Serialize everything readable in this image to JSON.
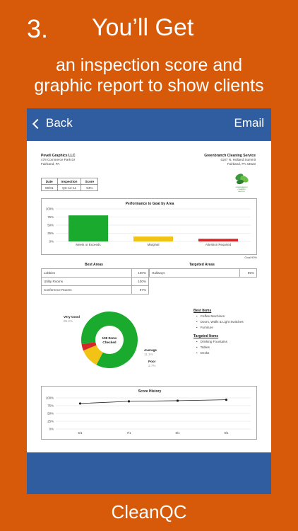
{
  "hero": {
    "step": "3.",
    "title": "You’ll Get",
    "subtitle_line1": "an inspection score and",
    "subtitle_line2": "graphic report to show clients"
  },
  "footer": {
    "brand": "CleanQC"
  },
  "navbar": {
    "back_label": "Back",
    "email_label": "Email"
  },
  "report": {
    "client": {
      "name": "Peveli Graphics LLC",
      "address1": "478 Commerce Park Dr",
      "address2": "Fairband, PA"
    },
    "company": {
      "name": "Greenbranch Cleaning Service",
      "address1": "4167 N. Holland Summit",
      "address2": "Fairband, PA 43623",
      "logo_text": "GREENBRANCH CLEANING SERVICE"
    },
    "info": {
      "headers": [
        "Date",
        "Inspection",
        "Score"
      ],
      "values": [
        "09/01",
        "QC-12-11",
        "94%"
      ]
    },
    "goal_note": "Goal 90%",
    "best_areas": {
      "title": "Best Areas",
      "rows": [
        {
          "name": "Lobbies",
          "value": "100%"
        },
        {
          "name": "Utility Rooms",
          "value": "100%"
        },
        {
          "name": "Conference Rooms",
          "value": "97%"
        }
      ]
    },
    "targeted_areas": {
      "title": "Targeted Areas",
      "rows": [
        {
          "name": "Hallways",
          "value": "85%"
        }
      ]
    },
    "best_items": {
      "title": "Best Items",
      "items": [
        "Coffee Machines",
        "Doors, Walls & Light Switches",
        "Furniture"
      ]
    },
    "targeted_items": {
      "title": "Targeted Items",
      "items": [
        "Drinking Fountains",
        "Tables",
        "Desks"
      ]
    },
    "donut": {
      "center_line1": "108 Items",
      "center_line2": "Checked",
      "slices": [
        {
          "name": "Very Good",
          "pct": "85.2%",
          "value": 85.2,
          "color": "#1aab2e"
        },
        {
          "name": "Average",
          "pct": "11.1%",
          "value": 11.1,
          "color": "#f2c314"
        },
        {
          "name": "Poor",
          "pct": "3.7%",
          "value": 3.7,
          "color": "#d42828"
        }
      ]
    }
  },
  "chart_data": [
    {
      "type": "bar",
      "title": "Performance to Goal by Area",
      "categories": [
        "Meets or Exceeds",
        "Marginal",
        "Attention Required"
      ],
      "values": [
        80,
        15,
        8
      ],
      "colors": [
        "#1aab2e",
        "#f2c314",
        "#d42828"
      ],
      "ylim": [
        0,
        100
      ],
      "yticks": [
        "0%",
        "25%",
        "50%",
        "75%",
        "100%"
      ],
      "grid": true
    },
    {
      "type": "line",
      "title": "Score History",
      "x": [
        "6/1",
        "7/1",
        "8/1",
        "9/1"
      ],
      "values": [
        82,
        89,
        91,
        94
      ],
      "ylim": [
        0,
        100
      ],
      "yticks": [
        "0%",
        "25%",
        "50%",
        "75%",
        "100%"
      ],
      "grid": true
    }
  ]
}
